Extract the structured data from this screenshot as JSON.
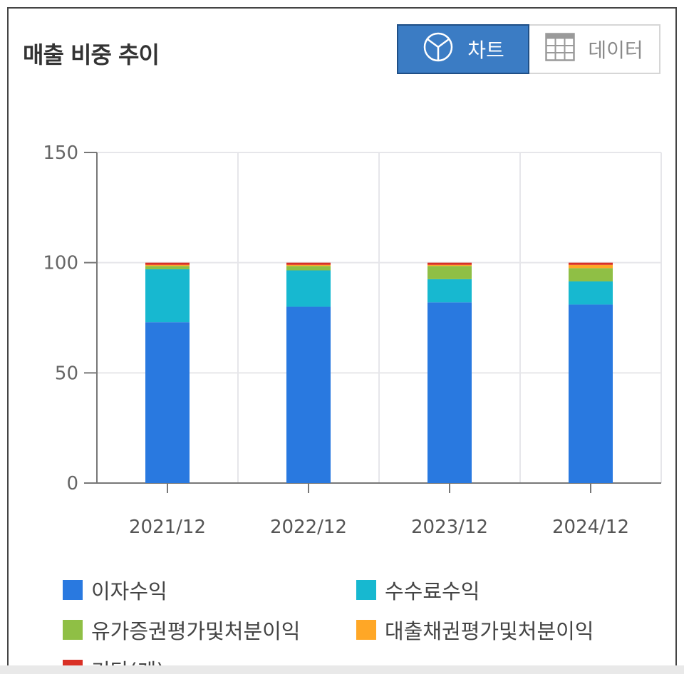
{
  "header": {
    "title": "매출 비중 추이"
  },
  "toggle": {
    "chart_label": "차트",
    "chart_icon": "pie-chart-icon",
    "data_label": "데이터",
    "data_icon": "table-grid-icon",
    "active": "chart"
  },
  "colors": {
    "interest": "#2979e0",
    "fee": "#17b8d0",
    "securities": "#8fbf45",
    "loans": "#ffa726",
    "other": "#d93025",
    "active_button": "#3b7cc4"
  },
  "chart_data": {
    "type": "bar",
    "stacked": true,
    "categories": [
      "2021/12",
      "2022/12",
      "2023/12",
      "2024/12"
    ],
    "ylim": [
      0,
      150
    ],
    "yticks": [
      0,
      50,
      100,
      150
    ],
    "grid": true,
    "legend_position": "bottom",
    "series": [
      {
        "name": "이자수익",
        "values": [
          73,
          80,
          82,
          81
        ]
      },
      {
        "name": "수수료수익",
        "values": [
          24,
          16.5,
          10.5,
          10.5
        ]
      },
      {
        "name": "유가증권평가및처분이익",
        "values": [
          1.5,
          2,
          6,
          6
        ]
      },
      {
        "name": "대출채권평가및처분이익",
        "values": [
          0.5,
          0.5,
          0.5,
          1.5
        ]
      },
      {
        "name": "기타(계)",
        "values": [
          1,
          1,
          1,
          1
        ]
      }
    ]
  }
}
